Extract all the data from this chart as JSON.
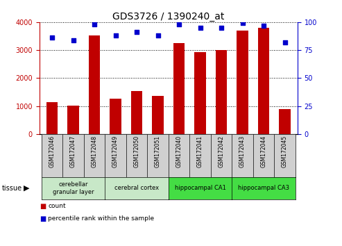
{
  "title": "GDS3726 / 1390240_at",
  "samples": [
    "GSM172046",
    "GSM172047",
    "GSM172048",
    "GSM172049",
    "GSM172050",
    "GSM172051",
    "GSM172040",
    "GSM172041",
    "GSM172042",
    "GSM172043",
    "GSM172044",
    "GSM172045"
  ],
  "counts": [
    1150,
    1020,
    3520,
    1270,
    1530,
    1370,
    3250,
    2920,
    3010,
    3700,
    3800,
    900
  ],
  "percentiles": [
    86,
    84,
    98,
    88,
    91,
    88,
    98,
    95,
    95,
    99,
    97,
    82
  ],
  "bar_color": "#C00000",
  "dot_color": "#0000CC",
  "ylim_left": [
    0,
    4000
  ],
  "ylim_right": [
    0,
    100
  ],
  "yticks_left": [
    0,
    1000,
    2000,
    3000,
    4000
  ],
  "yticks_right": [
    0,
    25,
    50,
    75,
    100
  ],
  "tissue_groups": [
    {
      "label": "cerebellar\ngranular layer",
      "start": 0,
      "end": 3,
      "color": "#c8e8c8"
    },
    {
      "label": "cerebral cortex",
      "start": 3,
      "end": 6,
      "color": "#c8e8c8"
    },
    {
      "label": "hippocampal CA1",
      "start": 6,
      "end": 9,
      "color": "#44dd44"
    },
    {
      "label": "hippocampal CA3",
      "start": 9,
      "end": 12,
      "color": "#44dd44"
    }
  ],
  "legend_count_color": "#C00000",
  "legend_dot_color": "#0000CC",
  "tissue_label": "tissue",
  "background_color": "#ffffff",
  "plot_bg_color": "#ffffff",
  "grid_color": "#000000",
  "title_fontsize": 10,
  "tick_fontsize": 7,
  "label_fontsize": 7,
  "ticklabel_bg": "#d0d0d0"
}
